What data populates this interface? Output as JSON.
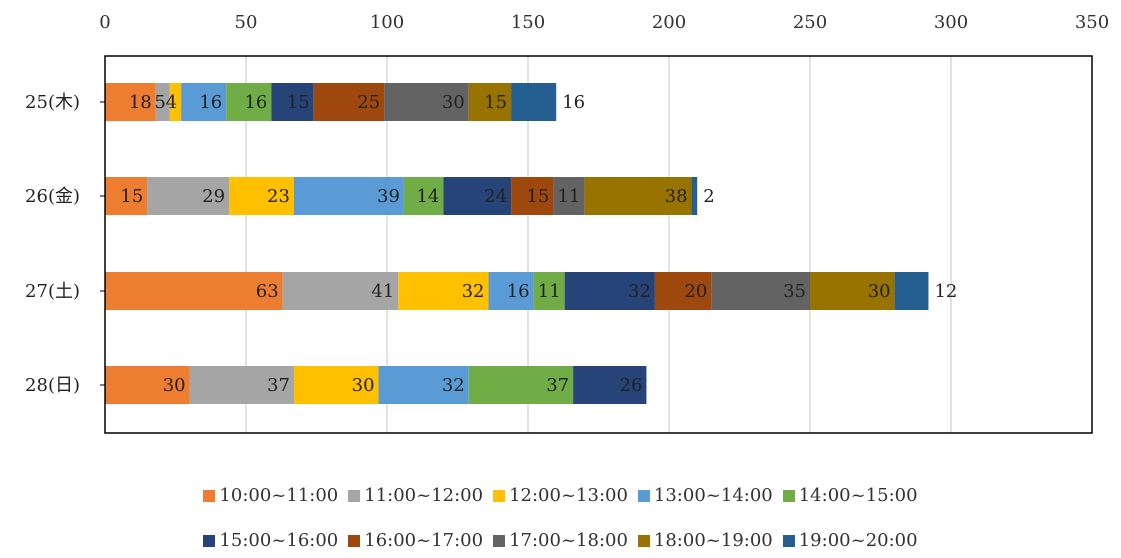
{
  "chart_data": {
    "type": "bar",
    "orientation": "horizontal",
    "stacked": true,
    "categories": [
      "25(木)",
      "26(金)",
      "27(土)",
      "28(日)"
    ],
    "xlim": [
      0,
      350
    ],
    "xticks": [
      0,
      50,
      100,
      150,
      200,
      250,
      300,
      350
    ],
    "grid": true,
    "legend_position": "bottom",
    "series": [
      {
        "name": "10:00~11:00",
        "color": "#ED7D31",
        "values": [
          18,
          15,
          63,
          30
        ],
        "labels": [
          "18",
          "15",
          "63",
          "30"
        ]
      },
      {
        "name": "11:00~12:00",
        "color": "#A5A5A5",
        "values": [
          5,
          29,
          41,
          37
        ],
        "labels": [
          "5",
          "29",
          "41",
          "37"
        ]
      },
      {
        "name": "12:00~13:00",
        "color": "#FFC000",
        "values": [
          4,
          23,
          32,
          30
        ],
        "labels": [
          "4",
          "23",
          "32",
          "30"
        ]
      },
      {
        "name": "13:00~14:00",
        "color": "#5B9BD5",
        "values": [
          16,
          39,
          16,
          32
        ],
        "labels": [
          "16",
          "39",
          "16",
          "32"
        ]
      },
      {
        "name": "14:00~15:00",
        "color": "#70AD47",
        "values": [
          16,
          14,
          11,
          37
        ],
        "labels": [
          "16",
          "14",
          "11",
          "37"
        ]
      },
      {
        "name": "15:00~16:00",
        "color": "#264478",
        "values": [
          15,
          24,
          32,
          26
        ],
        "labels": [
          "15",
          "24",
          "32",
          "26"
        ]
      },
      {
        "name": "16:00~17:00",
        "color": "#9E480E",
        "values": [
          25,
          15,
          20,
          0
        ],
        "labels": [
          "25",
          "15",
          "20",
          ""
        ]
      },
      {
        "name": "17:00~18:00",
        "color": "#636363",
        "values": [
          30,
          11,
          35,
          0
        ],
        "labels": [
          "30",
          "11",
          "35",
          ""
        ]
      },
      {
        "name": "18:00~19:00",
        "color": "#997300",
        "values": [
          15,
          38,
          30,
          0
        ],
        "labels": [
          "15",
          "38",
          "30",
          ""
        ]
      },
      {
        "name": "19:00~20:00",
        "color": "#255E91",
        "values": [
          16,
          2,
          12,
          0
        ],
        "labels": [
          "16",
          "2",
          "12",
          ""
        ]
      }
    ]
  }
}
